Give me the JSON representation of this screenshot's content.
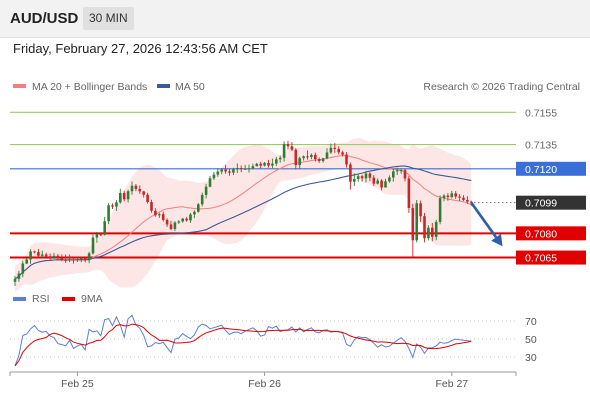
{
  "header": {
    "symbol": "AUD/USD",
    "timeframe": "30 MIN",
    "timestamp": "Friday, February 27, 2026 12:43:56 AM CET",
    "attribution": "Research © 2026 Trading Central"
  },
  "colors": {
    "bullish": "#2e7d32",
    "bearish": "#c62828",
    "ma20": "#f08080",
    "bollinger_fill": "#fde2e2",
    "ma50": "#3a5a9a",
    "resistance": "#9ccc65",
    "pivot": "#3b6fd8",
    "support": "#e00000",
    "current_price": "#333333",
    "arrow": "#2f5faa",
    "rsi": "#5b7fd6",
    "rsi_ma": "#e00000"
  },
  "chart_data": [
    {
      "type": "candlestick",
      "symbol": "AUD/USD",
      "interval": "30 MIN",
      "legend": [
        "MA 20 + Bollinger Bands",
        "MA 50"
      ],
      "x_ticks": [
        {
          "label": "Feb 25",
          "bar": 16
        },
        {
          "label": "Feb 26",
          "bar": 64
        },
        {
          "label": "Feb 27",
          "bar": 112
        }
      ],
      "ylim": [
        0.7048,
        0.7162
      ],
      "levels": [
        {
          "value": 0.7155,
          "label": "0.7155",
          "kind": "resistance"
        },
        {
          "value": 0.7135,
          "label": "0.7135",
          "kind": "resistance"
        },
        {
          "value": 0.712,
          "label": "0.7120",
          "kind": "pivot"
        },
        {
          "value": 0.7099,
          "label": "0.7099",
          "kind": "current"
        },
        {
          "value": 0.708,
          "label": "0.7080",
          "kind": "support"
        },
        {
          "value": 0.7065,
          "label": "0.7065",
          "kind": "support"
        }
      ],
      "projection": {
        "from": {
          "bar": 117,
          "value": 0.7099
        },
        "to": {
          "bar": 125,
          "value": 0.7072
        }
      },
      "candles": [
        [
          0.705,
          0.70536,
          0.70474,
          0.70518
        ],
        [
          0.70518,
          0.70568,
          0.705,
          0.70551
        ],
        [
          0.70551,
          0.7063,
          0.70528,
          0.70613
        ],
        [
          0.70613,
          0.70647,
          0.70609,
          0.70638
        ],
        [
          0.70638,
          0.70702,
          0.70611,
          0.70688
        ],
        [
          0.70688,
          0.70692,
          0.70676,
          0.70684
        ],
        [
          0.70684,
          0.70703,
          0.70657,
          0.70661
        ],
        [
          0.70661,
          0.70693,
          0.7065,
          0.70669
        ],
        [
          0.70669,
          0.7068,
          0.70655,
          0.70658
        ],
        [
          0.70658,
          0.70675,
          0.70631,
          0.70645
        ],
        [
          0.70645,
          0.70679,
          0.70641,
          0.70661
        ],
        [
          0.70661,
          0.70672,
          0.70632,
          0.70646
        ],
        [
          0.70646,
          0.70669,
          0.70627,
          0.70636
        ],
        [
          0.70636,
          0.70669,
          0.70617,
          0.70633
        ],
        [
          0.70633,
          0.70669,
          0.70622,
          0.70638
        ],
        [
          0.70638,
          0.70649,
          0.70613,
          0.70632
        ],
        [
          0.70632,
          0.70652,
          0.70623,
          0.70639
        ],
        [
          0.70639,
          0.70655,
          0.70621,
          0.70644
        ],
        [
          0.70644,
          0.70653,
          0.7062,
          0.70633
        ],
        [
          0.70633,
          0.70686,
          0.70615,
          0.70676
        ],
        [
          0.70676,
          0.70791,
          0.70668,
          0.70774
        ],
        [
          0.70774,
          0.70809,
          0.70742,
          0.70794
        ],
        [
          0.70794,
          0.70807,
          0.70783,
          0.70791
        ],
        [
          0.70791,
          0.70902,
          0.70787,
          0.70875
        ],
        [
          0.70875,
          0.70988,
          0.70857,
          0.70974
        ],
        [
          0.70974,
          0.70986,
          0.70951,
          0.70966
        ],
        [
          0.70966,
          0.71006,
          0.70939,
          0.70992
        ],
        [
          0.70992,
          0.71076,
          0.70984,
          0.7105
        ],
        [
          0.7105,
          0.71064,
          0.70999,
          0.71011
        ],
        [
          0.71011,
          0.71071,
          0.70991,
          0.71061
        ],
        [
          0.71061,
          0.71121,
          0.71039,
          0.71095
        ],
        [
          0.71095,
          0.71106,
          0.71061,
          0.71075
        ],
        [
          0.71075,
          0.71097,
          0.71045,
          0.7106
        ],
        [
          0.7106,
          0.71064,
          0.71022,
          0.71039
        ],
        [
          0.71039,
          0.71051,
          0.70984,
          0.70994
        ],
        [
          0.70994,
          0.71008,
          0.70928,
          0.7094
        ],
        [
          0.7094,
          0.70956,
          0.70903,
          0.70912
        ],
        [
          0.70912,
          0.70928,
          0.70896,
          0.70919
        ],
        [
          0.70919,
          0.70935,
          0.70873,
          0.70883
        ],
        [
          0.70883,
          0.70893,
          0.7084,
          0.70855
        ],
        [
          0.70855,
          0.70877,
          0.70819,
          0.70827
        ],
        [
          0.70827,
          0.70876,
          0.70814,
          0.70867
        ],
        [
          0.70867,
          0.70882,
          0.70858,
          0.70874
        ],
        [
          0.70874,
          0.70896,
          0.70866,
          0.70891
        ],
        [
          0.70891,
          0.709,
          0.70872,
          0.7088
        ],
        [
          0.7088,
          0.70927,
          0.70864,
          0.70917
        ],
        [
          0.70917,
          0.70943,
          0.70894,
          0.70934
        ],
        [
          0.70934,
          0.70988,
          0.70928,
          0.7098
        ],
        [
          0.7098,
          0.71053,
          0.70966,
          0.71038
        ],
        [
          0.71038,
          0.71107,
          0.71016,
          0.71089
        ],
        [
          0.71089,
          0.71156,
          0.71086,
          0.71141
        ],
        [
          0.71141,
          0.71181,
          0.71131,
          0.71164
        ],
        [
          0.71164,
          0.71203,
          0.71151,
          0.71183
        ],
        [
          0.71183,
          0.71205,
          0.71167,
          0.71195
        ],
        [
          0.71195,
          0.71224,
          0.71169,
          0.71184
        ],
        [
          0.71184,
          0.71197,
          0.71157,
          0.71176
        ],
        [
          0.71176,
          0.71206,
          0.71161,
          0.71197
        ],
        [
          0.71197,
          0.71233,
          0.71174,
          0.71205
        ],
        [
          0.71205,
          0.71221,
          0.71179,
          0.712
        ],
        [
          0.712,
          0.71224,
          0.71196,
          0.712
        ],
        [
          0.712,
          0.71226,
          0.71177,
          0.71203
        ],
        [
          0.71203,
          0.71232,
          0.71197,
          0.71216
        ],
        [
          0.71216,
          0.71237,
          0.71214,
          0.71231
        ],
        [
          0.71231,
          0.71243,
          0.71203,
          0.7122
        ],
        [
          0.7122,
          0.71242,
          0.71214,
          0.71236
        ],
        [
          0.71236,
          0.71255,
          0.71207,
          0.7122
        ],
        [
          0.7122,
          0.71263,
          0.71204,
          0.71232
        ],
        [
          0.71232,
          0.71273,
          0.71217,
          0.71259
        ],
        [
          0.71259,
          0.71282,
          0.71238,
          0.71268
        ],
        [
          0.71268,
          0.7137,
          0.71244,
          0.71353
        ],
        [
          0.71353,
          0.71374,
          0.71321,
          0.71339
        ],
        [
          0.71339,
          0.71366,
          0.7131,
          0.71318
        ],
        [
          0.71318,
          0.71328,
          0.71196,
          0.71223
        ],
        [
          0.71223,
          0.71276,
          0.71198,
          0.71266
        ],
        [
          0.71266,
          0.71283,
          0.71251,
          0.71277
        ],
        [
          0.71277,
          0.71313,
          0.71257,
          0.71273
        ],
        [
          0.71273,
          0.71295,
          0.71259,
          0.71286
        ],
        [
          0.71286,
          0.71301,
          0.71245,
          0.7126
        ],
        [
          0.7126,
          0.7127,
          0.71237,
          0.71248
        ],
        [
          0.71248,
          0.71268,
          0.71238,
          0.71265
        ],
        [
          0.71265,
          0.71327,
          0.71259,
          0.71301
        ],
        [
          0.71301,
          0.71357,
          0.71292,
          0.7133
        ],
        [
          0.7133,
          0.7136,
          0.71298,
          0.71323
        ],
        [
          0.71323,
          0.71339,
          0.71289,
          0.71302
        ],
        [
          0.71302,
          0.71312,
          0.71276,
          0.71288
        ],
        [
          0.71288,
          0.71304,
          0.71207,
          0.71227
        ],
        [
          0.71227,
          0.71239,
          0.71071,
          0.7112
        ],
        [
          0.7112,
          0.71172,
          0.71093,
          0.71137
        ],
        [
          0.71137,
          0.7117,
          0.7112,
          0.71154
        ],
        [
          0.71154,
          0.71163,
          0.71121,
          0.71141
        ],
        [
          0.71141,
          0.71188,
          0.71115,
          0.71171
        ],
        [
          0.71171,
          0.71179,
          0.71124,
          0.71145
        ],
        [
          0.71145,
          0.71161,
          0.71093,
          0.71108
        ],
        [
          0.71108,
          0.7114,
          0.71103,
          0.71127
        ],
        [
          0.71127,
          0.71136,
          0.71067,
          0.71084
        ],
        [
          0.71084,
          0.71138,
          0.71083,
          0.71122
        ],
        [
          0.71122,
          0.71159,
          0.71113,
          0.71146
        ],
        [
          0.71146,
          0.71202,
          0.7112,
          0.71184
        ],
        [
          0.71184,
          0.71207,
          0.71162,
          0.7119
        ],
        [
          0.7119,
          0.71203,
          0.71169,
          0.71192
        ],
        [
          0.71192,
          0.71201,
          0.71123,
          0.7114
        ],
        [
          0.7114,
          0.71157,
          0.70926,
          0.70957
        ],
        [
          0.70957,
          0.70983,
          0.70651,
          0.70757
        ],
        [
          0.70757,
          0.71007,
          0.70744,
          0.70986
        ],
        [
          0.70986,
          0.71003,
          0.7087,
          0.70906
        ],
        [
          0.70906,
          0.70926,
          0.70744,
          0.7077
        ],
        [
          0.7077,
          0.7085,
          0.70756,
          0.70835
        ],
        [
          0.70835,
          0.70864,
          0.70751,
          0.70778
        ],
        [
          0.70778,
          0.70884,
          0.70757,
          0.70871
        ],
        [
          0.70871,
          0.71035,
          0.70856,
          0.71018
        ],
        [
          0.71018,
          0.71042,
          0.70999,
          0.71034
        ],
        [
          0.71034,
          0.71049,
          0.71002,
          0.71025
        ],
        [
          0.71025,
          0.71063,
          0.71016,
          0.71048
        ],
        [
          0.71048,
          0.71062,
          0.71013,
          0.71028
        ],
        [
          0.71028,
          0.71043,
          0.71,
          0.71021
        ],
        [
          0.71021,
          0.71036,
          0.71,
          0.71007
        ],
        [
          0.71007,
          0.7103,
          0.70983,
          0.70996
        ],
        [
          0.70996,
          0.71003,
          0.70971,
          0.7099
        ]
      ]
    },
    {
      "type": "line",
      "name": "RSI",
      "legend": [
        "RSI",
        "9MA"
      ],
      "ylim": [
        20,
        80
      ],
      "y_ticks": [
        70,
        50,
        30
      ],
      "x_ticks": [
        {
          "label": "Feb 25",
          "bar": 16
        },
        {
          "label": "Feb 26",
          "bar": 64
        },
        {
          "label": "Feb 27",
          "bar": 112
        }
      ],
      "rsi": [
        20.1,
        31.6,
        54.0,
        55.5,
        61.3,
        65.0,
        59.4,
        57.6,
        58.4,
        53.3,
        51.6,
        44.9,
        43.8,
        42.6,
        48.5,
        39.4,
        42.3,
        44.0,
        38.0,
        60.7,
        58.0,
        59.1,
        53.5,
        71.5,
        72.7,
        64.9,
        74.6,
        65.6,
        52.1,
        72.5,
        76.3,
        65.5,
        61.9,
        54.0,
        41.3,
        42.3,
        46.1,
        44.8,
        46.3,
        40.5,
        35.0,
        49.9,
        51.1,
        56.0,
        52.9,
        50.5,
        54.6,
        63.3,
        66.5,
        65.0,
        61.4,
        62.6,
        63.9,
        65.3,
        59.3,
        55.0,
        57.3,
        57.8,
        55.9,
        58.6,
        60.7,
        62.4,
        59.1,
        53.1,
        54.5,
        63.9,
        62.0,
        64.2,
        58.2,
        59.8,
        60.3,
        63.2,
        57.7,
        62.3,
        57.9,
        60.6,
        62.5,
        57.9,
        56.9,
        59.6,
        60.2,
        57.7,
        58.3,
        58.2,
        56.5,
        44.1,
        41.9,
        49.1,
        52.6,
        51.5,
        51.7,
        49.2,
        45.2,
        40.9,
        43.7,
        41.1,
        42.0,
        45.4,
        48.6,
        51.4,
        47.5,
        39.5,
        29.5,
        44.4,
        40.9,
        34.0,
        40.1,
        40.3,
        42.3,
        46.4,
        45.2,
        46.0,
        48.5,
        49.9,
        49.1,
        48.6,
        48.1,
        47.4
      ],
      "ma9": [
        20.1,
        25.8,
        35.2,
        40.3,
        44.5,
        47.9,
        49.5,
        50.6,
        51.7,
        55.1,
        56.6,
        55.5,
        53.8,
        51.3,
        49.6,
        46.5,
        45.2,
        44.2,
        43.2,
        45.2,
        46.6,
        48.4,
        48.5,
        52.4,
        57.7,
        60.6,
        65.0,
        66.0,
        64.6,
        64.7,
        66.6,
        66.0,
        64.8,
        62.7,
        58.1,
        54.4,
        51.9,
        48.5,
        48.5,
        48.6,
        47.3,
        45.7,
        45.6,
        45.9,
        46.2,
        46.7,
        48.2,
        51.4,
        54.5,
        56.8,
        58.2,
        59.7,
        61.0,
        62.1,
        61.9,
        61.2,
        60.9,
        60.5,
        59.9,
        59.3,
        59.0,
        58.7,
        58.3,
        58.2,
        58.3,
        59.3,
        59.4,
        59.6,
        59.5,
        59.6,
        59.8,
        60.5,
        60.4,
        60.8,
        59.8,
        59.4,
        59.6,
        59.5,
        59.5,
        59.1,
        59.0,
        58.6,
        58.4,
        58.0,
        57.4,
        55.5,
        53.3,
        51.9,
        51.0,
        49.9,
        48.9,
        48.3,
        47.6,
        46.5,
        46.8,
        46.6,
        46.1,
        45.4,
        44.9,
        45.1,
        45.2,
        44.6,
        42.8,
        43.1,
        42.8,
        40.6,
        39.6,
        39.3,
        39.4,
        39.9,
        40.7,
        41.7,
        43.0,
        44.5,
        45.0,
        45.8,
        46.6,
        47.5
      ],
      "overbought": 70,
      "oversold": 30
    }
  ]
}
